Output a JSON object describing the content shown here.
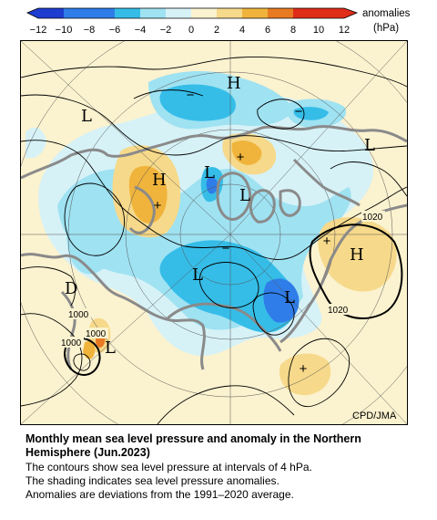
{
  "colorbar": {
    "ticks": [
      "−12",
      "−10",
      "−8",
      "−6",
      "−4",
      "−2",
      "0",
      "2",
      "4",
      "6",
      "8",
      "10",
      "12"
    ],
    "unit_label": "anomalies",
    "unit": "(hPa)",
    "colors": {
      "deep_blue": "#1e3ccf",
      "blue": "#2f7de8",
      "sky": "#35bde8",
      "light_sky": "#9fe2f2",
      "pale_blue": "#d6f2f7",
      "pale_yellow": "#fbf2cf",
      "yellow": "#f6d98a",
      "orange": "#f0b43c",
      "dark_orange": "#e87a22",
      "red": "#df2d1a"
    }
  },
  "map": {
    "pressure_centers": [
      {
        "label": "H"
      },
      {
        "label": "L"
      },
      {
        "label": "L"
      },
      {
        "label": "H"
      },
      {
        "label": "L"
      },
      {
        "label": "L"
      },
      {
        "label": "L"
      },
      {
        "label": "L"
      },
      {
        "label": "D"
      },
      {
        "label": "L"
      },
      {
        "label": "H"
      }
    ],
    "anomaly_signs": [
      "−",
      "−",
      "+",
      "+",
      "−",
      "+",
      "+"
    ],
    "contour_labels": [
      "1020",
      "1020",
      "1000",
      "1000",
      "1000"
    ],
    "credit": "CPD/JMA"
  },
  "caption": {
    "title": "Monthly mean sea level pressure and anomaly in the Northern Hemisphere (Jun.2023)",
    "line1": "The contours show sea level pressure at intervals of 4 hPa.",
    "line2": "The shading indicates sea level pressure anomalies.",
    "line3": "Anomalies are deviations from the 1991–2020 average."
  }
}
